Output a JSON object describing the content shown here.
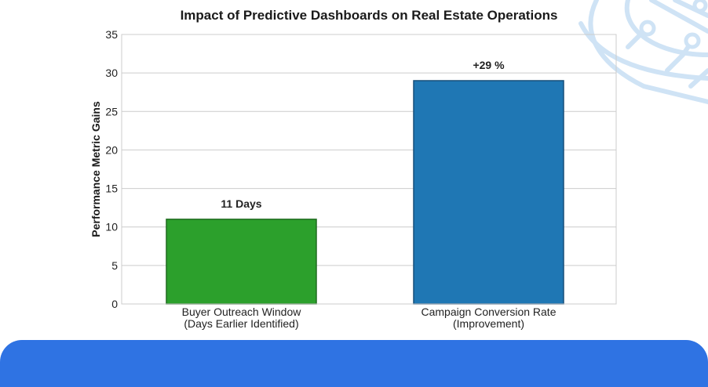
{
  "chart_data": {
    "type": "bar",
    "title": "Impact of Predictive Dashboards on Real Estate Operations",
    "xlabel": "",
    "ylabel": "Performance Metric Gains",
    "ylim": [
      0,
      35
    ],
    "yticks": [
      0,
      5,
      10,
      15,
      20,
      25,
      30,
      35
    ],
    "grid": true,
    "categories": [
      [
        "Buyer Outreach Window",
        "(Days Earlier Identified)"
      ],
      [
        "Campaign Conversion Rate",
        "(Improvement)"
      ]
    ],
    "values": [
      11,
      29
    ],
    "data_labels": [
      "11 Days",
      "+29 %"
    ],
    "colors": [
      "#2ca02c",
      "#1f77b4"
    ],
    "edge_colors": [
      "#1e6b1e",
      "#174f7a"
    ]
  },
  "theme": {
    "band_color": "#2f73e3",
    "grid_color": "#cccccc",
    "decoration_color": "#cfe3f5"
  }
}
